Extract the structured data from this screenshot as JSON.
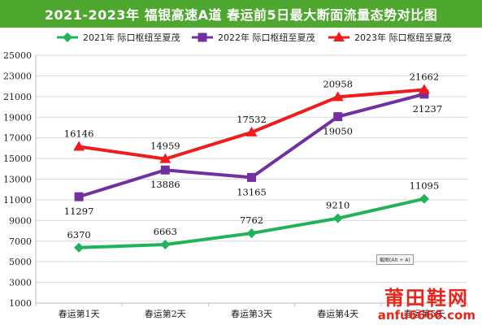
{
  "title": "2021-2023年  福银高速A道  春运前5日最大断面流量态势对比图",
  "capture_tip": "截图(Alt + A)",
  "watermark": {
    "brand": "莆田鞋网",
    "url": "anfu6666.com"
  },
  "colors": {
    "title_bg": "#4ea72e",
    "s2021": "#1fb35a",
    "s2022": "#7030a0",
    "s2023": "#ee1c1c"
  },
  "chart_data": {
    "type": "line",
    "title": "2021-2023年  福银高速A道  春运前5日最大断面流量态势对比图",
    "categories": [
      "春运第1天",
      "春运第2天",
      "春运第3天",
      "春运第4天",
      "春运第5天"
    ],
    "ylim": [
      1000,
      25000
    ],
    "yticks": [
      1000,
      3000,
      5000,
      7000,
      9000,
      11000,
      13000,
      15000,
      17000,
      19000,
      21000,
      23000,
      25000
    ],
    "grid": true,
    "legend_position": "top",
    "series": [
      {
        "name": "2021年  际口枢纽至夏茂",
        "marker": "diamond",
        "color": "#1fb35a",
        "values": [
          6370,
          6663,
          7762,
          9210,
          11095
        ]
      },
      {
        "name": "2022年  际口枢纽至夏茂",
        "marker": "square",
        "color": "#7030a0",
        "values": [
          11297,
          13886,
          13165,
          19050,
          21237
        ]
      },
      {
        "name": "2023年  际口枢纽至夏茂",
        "marker": "triangle",
        "color": "#ee1c1c",
        "values": [
          16146,
          14959,
          17532,
          20958,
          21662
        ]
      }
    ]
  }
}
